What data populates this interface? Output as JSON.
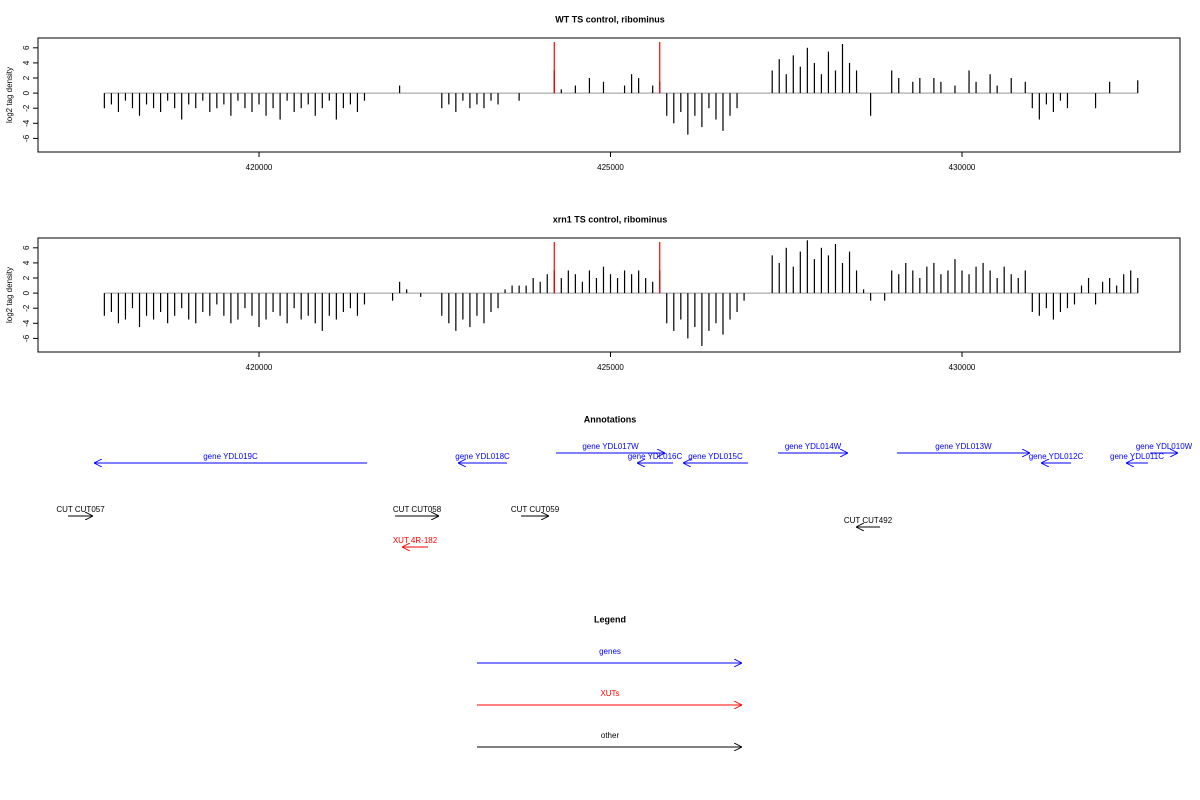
{
  "chart_data": [
    {
      "type": "bar",
      "title": "WT TS control, ribominus",
      "y_label": "log2 tag density",
      "color": "#000000",
      "highlight_x": [
        424200,
        425700
      ],
      "highlight_color": "#ff0000",
      "xlim": [
        416856,
        433101
      ],
      "ylim": [
        -7.8,
        7.3
      ],
      "xticks": [
        420000,
        425000,
        430000
      ],
      "yticks": [
        -6,
        -4,
        -2,
        0,
        2,
        4,
        6
      ],
      "x": [
        417800,
        417900,
        418000,
        418100,
        418200,
        418300,
        418400,
        418500,
        418600,
        418700,
        418800,
        418900,
        419000,
        419100,
        419200,
        419300,
        419400,
        419500,
        419600,
        419700,
        419800,
        419900,
        420000,
        420100,
        420200,
        420300,
        420400,
        420500,
        420600,
        420700,
        420800,
        420900,
        421000,
        421100,
        421200,
        421300,
        421400,
        421500,
        421600,
        421700,
        421800,
        421900,
        422000,
        422100,
        422200,
        422300,
        422400,
        422500,
        422600,
        422700,
        422800,
        422900,
        423000,
        423100,
        423200,
        423300,
        423400,
        423500,
        423600,
        423700,
        423800,
        423900,
        424000,
        424100,
        424200,
        424300,
        424400,
        424500,
        424600,
        424700,
        424800,
        424900,
        425000,
        425100,
        425200,
        425300,
        425400,
        425500,
        425600,
        425700,
        425800,
        425900,
        426000,
        426100,
        426200,
        426300,
        426400,
        426500,
        426600,
        426700,
        426800,
        426900,
        427000,
        427100,
        427200,
        427300,
        427400,
        427500,
        427600,
        427700,
        427800,
        427900,
        428000,
        428100,
        428200,
        428300,
        428400,
        428500,
        428600,
        428700,
        428800,
        428900,
        429000,
        429100,
        429200,
        429300,
        429400,
        429500,
        429600,
        429700,
        429800,
        429900,
        430000,
        430100,
        430200,
        430300,
        430400,
        430500,
        430600,
        430700,
        430800,
        430900,
        431000,
        431100,
        431200,
        431300,
        431400,
        431500,
        431600,
        431700,
        431800,
        431900,
        432000,
        432100,
        432200,
        432300,
        432400,
        432500
      ],
      "values": [
        -2,
        -1.5,
        -2.5,
        -1,
        -2,
        -3,
        -1.5,
        -2,
        -2.5,
        -1,
        -2,
        -3.5,
        -1.5,
        -2,
        -1,
        -2.5,
        -2,
        -1.5,
        -3,
        -1,
        -2,
        -2.5,
        -1.5,
        -3,
        -2,
        -3.5,
        -1,
        -2.5,
        -2,
        -1.5,
        -3,
        -2,
        -1,
        -3.5,
        -2,
        -1.5,
        -2.5,
        -1,
        0,
        0,
        0,
        0,
        1,
        0,
        0,
        0,
        0,
        0,
        -2,
        -1.5,
        -2.5,
        -1,
        -2,
        -1.5,
        -2,
        -1,
        -1.5,
        0,
        0,
        -1,
        0,
        0,
        0,
        0,
        3,
        0.5,
        0,
        1,
        0,
        2,
        0,
        1.5,
        0,
        0,
        1,
        2.5,
        2,
        0,
        1,
        1.5,
        -3,
        -4,
        -2.5,
        -5.5,
        -3,
        -4.5,
        -2,
        -3.5,
        -5,
        -3,
        -2,
        0,
        0,
        0,
        0,
        3,
        4.5,
        2.5,
        5,
        3.5,
        6,
        4,
        2.5,
        5.5,
        3,
        6.5,
        4,
        3,
        0,
        -3,
        0,
        0,
        3,
        2,
        0,
        1.5,
        2,
        0,
        2,
        1.5,
        0,
        1,
        0,
        3,
        1.5,
        0,
        2.5,
        1,
        0,
        2,
        0,
        1.5,
        -2,
        -3.5,
        -1.5,
        -2.5,
        -1,
        -2,
        0,
        0,
        0,
        -2,
        0,
        1.5,
        0,
        0,
        0,
        1.7
      ]
    },
    {
      "type": "bar",
      "title": "xrn1 TS control, ribominus",
      "y_label": "log2 tag density",
      "color": "#000000",
      "highlight_x": [
        424200,
        425700
      ],
      "highlight_color": "#ff0000",
      "xlim": [
        416856,
        433101
      ],
      "ylim": [
        -7.8,
        7.3
      ],
      "xticks": [
        420000,
        425000,
        430000
      ],
      "yticks": [
        -6,
        -4,
        -2,
        0,
        2,
        4,
        6
      ],
      "x": [
        417800,
        417900,
        418000,
        418100,
        418200,
        418300,
        418400,
        418500,
        418600,
        418700,
        418800,
        418900,
        419000,
        419100,
        419200,
        419300,
        419400,
        419500,
        419600,
        419700,
        419800,
        419900,
        420000,
        420100,
        420200,
        420300,
        420400,
        420500,
        420600,
        420700,
        420800,
        420900,
        421000,
        421100,
        421200,
        421300,
        421400,
        421500,
        421600,
        421700,
        421800,
        421900,
        422000,
        422100,
        422200,
        422300,
        422400,
        422500,
        422600,
        422700,
        422800,
        422900,
        423000,
        423100,
        423200,
        423300,
        423400,
        423500,
        423600,
        423700,
        423800,
        423900,
        424000,
        424100,
        424200,
        424300,
        424400,
        424500,
        424600,
        424700,
        424800,
        424900,
        425000,
        425100,
        425200,
        425300,
        425400,
        425500,
        425600,
        425700,
        425800,
        425900,
        426000,
        426100,
        426200,
        426300,
        426400,
        426500,
        426600,
        426700,
        426800,
        426900,
        427000,
        427100,
        427200,
        427300,
        427400,
        427500,
        427600,
        427700,
        427800,
        427900,
        428000,
        428100,
        428200,
        428300,
        428400,
        428500,
        428600,
        428700,
        428800,
        428900,
        429000,
        429100,
        429200,
        429300,
        429400,
        429500,
        429600,
        429700,
        429800,
        429900,
        430000,
        430100,
        430200,
        430300,
        430400,
        430500,
        430600,
        430700,
        430800,
        430900,
        431000,
        431100,
        431200,
        431300,
        431400,
        431500,
        431600,
        431700,
        431800,
        431900,
        432000,
        432100,
        432200,
        432300,
        432400,
        432500
      ],
      "values": [
        -3,
        -2.5,
        -4,
        -3.5,
        -2,
        -4.5,
        -3,
        -3.5,
        -2.5,
        -4,
        -3,
        -2,
        -3.5,
        -4,
        -2.5,
        -3,
        -1.5,
        -3,
        -4,
        -3.5,
        -2,
        -3,
        -4.5,
        -3.5,
        -2.5,
        -3,
        -4,
        -2,
        -3.5,
        -3,
        -4,
        -5,
        -3,
        -3.5,
        -2.5,
        -2,
        -3,
        -1.5,
        0,
        0,
        0,
        -1,
        1.5,
        0.5,
        0,
        -0.5,
        0,
        0,
        -3,
        -4,
        -5,
        -3.5,
        -4.5,
        -3,
        -4,
        -2.5,
        -2,
        0.5,
        1,
        1,
        1,
        2,
        1.5,
        2.5,
        3,
        2,
        3,
        2.5,
        1.5,
        3,
        2,
        3.5,
        2.5,
        2,
        3,
        2.5,
        3,
        2,
        1.5,
        3,
        -4,
        -5,
        -3.5,
        -6,
        -4.5,
        -7,
        -5,
        -4,
        -5.5,
        -3.5,
        -2.5,
        -1,
        0,
        0,
        0,
        5,
        4,
        6,
        3.5,
        5.5,
        7,
        4.5,
        6,
        5,
        6.5,
        4,
        5.5,
        3,
        0.5,
        -1,
        0,
        -1,
        3,
        2.5,
        4,
        3,
        2,
        3.5,
        4,
        2.5,
        3,
        4.5,
        3,
        2.5,
        3.5,
        4,
        3,
        2,
        3.5,
        2.5,
        2,
        3,
        -2.5,
        -3,
        -2,
        -3.5,
        -2.5,
        -2,
        -1.5,
        1,
        2,
        -1.5,
        1.5,
        2,
        1,
        2.5,
        3,
        2
      ]
    }
  ],
  "annotations": {
    "title": "Annotations",
    "features": [
      {
        "label": "gene YDL019C",
        "from": 421536,
        "to": 417653,
        "color": "#0000ff"
      },
      {
        "label": "gene YDL018C",
        "from": 423528,
        "to": 422831,
        "color": "#0000ff"
      },
      {
        "label": "gene YDL017W",
        "from": 424225,
        "to": 425775,
        "color": "#0000ff"
      },
      {
        "label": "gene YDL016C",
        "from": 425889,
        "to": 425377,
        "color": "#0000ff"
      },
      {
        "label": "gene YDL015C",
        "from": 426956,
        "to": 426031,
        "color": "#0000ff"
      },
      {
        "label": "gene YDL014W",
        "from": 427383,
        "to": 428379,
        "color": "#0000ff"
      },
      {
        "label": "gene YDL013W",
        "from": 429075,
        "to": 430967,
        "color": "#0000ff"
      },
      {
        "label": "gene YDL012C",
        "from": 431551,
        "to": 431124,
        "color": "#0000ff"
      },
      {
        "label": "gene YDL011C",
        "from": 432646,
        "to": 432333,
        "color": "#0000ff"
      },
      {
        "label": "gene YDL010W",
        "from": 432675,
        "to": 433073,
        "color": "#0000ff"
      },
      {
        "label": "CUT CUT057",
        "from": 417283,
        "to": 417639,
        "color": "#000000"
      },
      {
        "label": "CUT CUT058",
        "from": 421935,
        "to": 422561,
        "color": "#000000"
      },
      {
        "label": "CUT CUT059",
        "from": 423727,
        "to": 424125,
        "color": "#000000"
      },
      {
        "label": "CUT CUT492",
        "from": 428834,
        "to": 428492,
        "color": "#000000"
      },
      {
        "label": "XUT 4R-182",
        "from": 422404,
        "to": 422034,
        "color": "#ff0000"
      }
    ]
  },
  "legend": {
    "title": "Legend",
    "items": [
      {
        "label": "genes",
        "color": "#0000ff"
      },
      {
        "label": "XUTs",
        "color": "#ff0000"
      },
      {
        "label": "other",
        "color": "#000000"
      }
    ]
  }
}
